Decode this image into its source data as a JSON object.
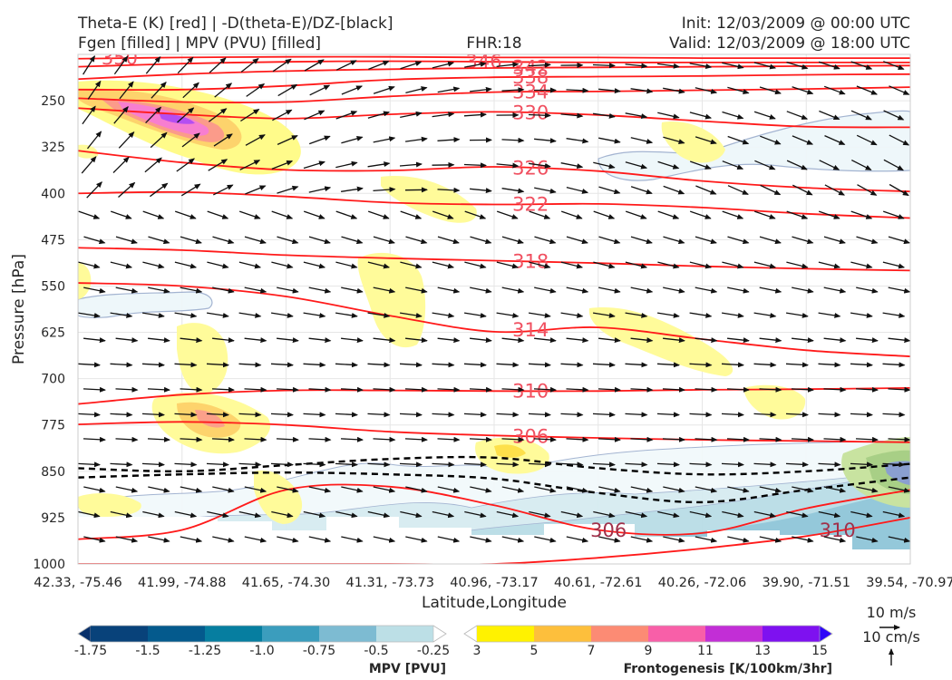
{
  "header": {
    "left_line1": "Theta-E (K) [red] | -D(theta-E)/DZ-[black]",
    "left_line2": "Fgen [filled] | MPV (PVU) [filled]",
    "center": "FHR:18",
    "right_line1": "Init: 12/03/2009 @ 00:00 UTC",
    "right_line2": "Valid: 12/03/2009 @ 18:00 UTC"
  },
  "chart_data": {
    "type": "cross-section",
    "title": "Theta-E (K) [red] | -D(theta-E)/DZ-[black]",
    "subtitle": "Fgen [filled] | MPV (PVU) [filled]",
    "xlabel": "Latitude,Longitude",
    "ylabel": "Pressure [hPa]",
    "y_ticks": [
      250,
      325,
      400,
      475,
      550,
      625,
      700,
      775,
      850,
      925,
      1000
    ],
    "ylim": [
      1000,
      175
    ],
    "x_ticks": [
      "42.33, -75.46",
      "41.99, -74.88",
      "41.65, -74.30",
      "41.31, -73.73",
      "40.96, -73.17",
      "40.61, -72.61",
      "40.26, -72.06",
      "39.90, -71.51",
      "39.54, -70.97"
    ],
    "grid": true,
    "theta_e_contours": [
      {
        "level": 350,
        "label": "350",
        "y": [
          182,
          180,
          179,
          179,
          180,
          180,
          181,
          181,
          181
        ]
      },
      {
        "level": 346,
        "label": "346",
        "y": [
          195,
          190,
          187,
          186,
          187,
          188,
          188,
          188,
          188
        ]
      },
      {
        "level": 342,
        "label": "342",
        "y": [
          215,
          207,
          202,
          199,
          197,
          196,
          195,
          194,
          193
        ]
      },
      {
        "level": 338,
        "label": "338",
        "y": [
          232,
          232,
          226,
          216,
          212,
          211,
          210,
          208,
          207
        ]
      },
      {
        "level": 334,
        "label": "334",
        "y": [
          246,
          252,
          252,
          243,
          236,
          235,
          233,
          231,
          228
        ]
      },
      {
        "level": 330,
        "label": "330",
        "y": [
          262,
          272,
          279,
          272,
          268,
          273,
          283,
          292,
          293
        ]
      },
      {
        "level": 326,
        "label": "326",
        "y": [
          331,
          350,
          362,
          363,
          357,
          364,
          380,
          391,
          397
        ]
      },
      {
        "level": 322,
        "label": "322",
        "y": [
          400,
          398,
          405,
          415,
          418,
          417,
          423,
          433,
          440
        ]
      },
      {
        "level": 318,
        "label": "318",
        "y": [
          488,
          492,
          500,
          505,
          509,
          513,
          518,
          522,
          525
        ]
      },
      {
        "level": 314,
        "label": "314",
        "y": [
          545,
          550,
          567,
          598,
          624,
          617,
          636,
          654,
          664
        ]
      },
      {
        "level": 310,
        "label": "310",
        "y": [
          741,
          726,
          719,
          719,
          720,
          720,
          718,
          717,
          715
        ]
      },
      {
        "level": 306,
        "label": "306",
        "y": [
          774,
          770,
          775,
          786,
          792,
          796,
          799,
          801,
          803
        ]
      },
      {
        "level": 306,
        "label": "306",
        "y": [
          960,
          945,
          880,
          875,
          905,
          945,
          950,
          910,
          880
        ]
      },
      {
        "level": 310,
        "label": "310",
        "y": [
          1000,
          1000,
          1000,
          1000,
          1000,
          990,
          975,
          955,
          925
        ]
      }
    ],
    "stability_contours_dashed": [
      {
        "y": [
          860,
          855,
          852,
          855,
          862,
          885,
          900,
          880,
          860
        ]
      },
      {
        "y": [
          845,
          850,
          840,
          830,
          828,
          845,
          855,
          850,
          838
        ]
      }
    ],
    "fill_regions": [
      "Frontogenesis maximum near 41.99,-74.88 at 300 hPa (~13)",
      "Frontogenesis maximum near 41.99,-74.88 at 780 hPa (~7)",
      "Negative MPV below 850 hPa across the section"
    ],
    "colorbar_mpv": {
      "label": "MPV [PVU]",
      "ticks": [
        "-1.75",
        "-1.5",
        "-1.25",
        "-1.0",
        "-0.75",
        "-0.5",
        "-0.25"
      ],
      "colors": [
        "#08306b",
        "#08427a",
        "#045a8d",
        "#067ea0",
        "#3b9dbd",
        "#7dbbd2",
        "#bcdfe6",
        "#ffffff"
      ]
    },
    "colorbar_fgen": {
      "label": "Frontogenesis [K/100km/3hr]",
      "ticks": [
        "3",
        "5",
        "7",
        "9",
        "11",
        "13",
        "15"
      ],
      "colors": [
        "#ffffff",
        "#fff200",
        "#fdbf3c",
        "#fc8b74",
        "#f85fa8",
        "#c22ed6",
        "#7e11f0",
        "#2e05f8"
      ]
    },
    "vector_key": {
      "horizontal": "10 m/s",
      "vertical": "10 cm/s"
    }
  }
}
